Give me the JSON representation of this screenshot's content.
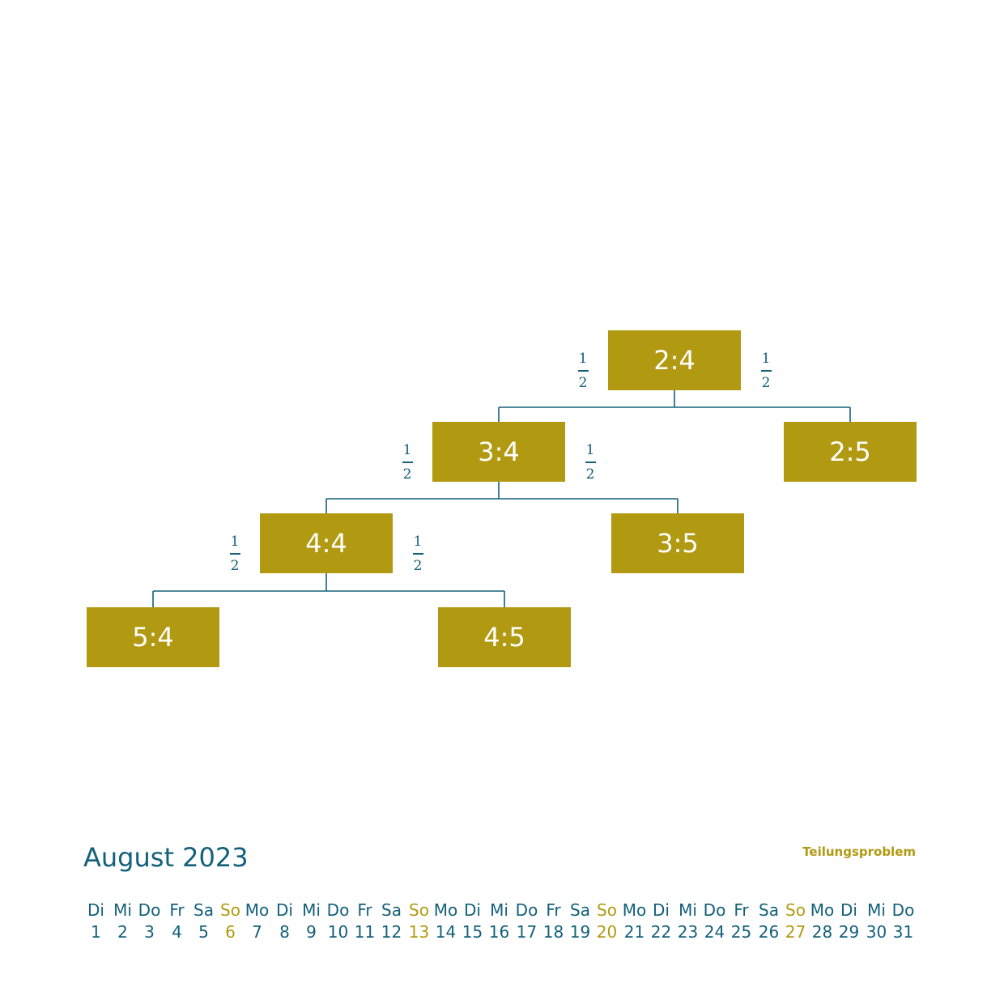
{
  "colors": {
    "accent": "#b19a11",
    "primary": "#13607a",
    "background": "#ffffff"
  },
  "tree": {
    "nodes": [
      {
        "id": "n24",
        "label": "2:4"
      },
      {
        "id": "n34",
        "label": "3:4"
      },
      {
        "id": "n25",
        "label": "2:5"
      },
      {
        "id": "n44",
        "label": "4:4"
      },
      {
        "id": "n35",
        "label": "3:5"
      },
      {
        "id": "n54",
        "label": "5:4"
      },
      {
        "id": "n45",
        "label": "4:5"
      }
    ],
    "edges": [
      {
        "from": "n24",
        "to": "n34"
      },
      {
        "from": "n24",
        "to": "n25"
      },
      {
        "from": "n34",
        "to": "n44"
      },
      {
        "from": "n34",
        "to": "n35"
      },
      {
        "from": "n44",
        "to": "n54"
      },
      {
        "from": "n44",
        "to": "n45"
      }
    ],
    "probabilities": [
      {
        "node": "n24",
        "side": "left",
        "numerator": "1",
        "denominator": "2"
      },
      {
        "node": "n24",
        "side": "right",
        "numerator": "1",
        "denominator": "2"
      },
      {
        "node": "n34",
        "side": "left",
        "numerator": "1",
        "denominator": "2"
      },
      {
        "node": "n34",
        "side": "right",
        "numerator": "1",
        "denominator": "2"
      },
      {
        "node": "n44",
        "side": "left",
        "numerator": "1",
        "denominator": "2"
      },
      {
        "node": "n44",
        "side": "right",
        "numerator": "1",
        "denominator": "2"
      }
    ]
  },
  "calendar": {
    "month_title": "August 2023",
    "topic": "Teilungsproblem",
    "days": [
      {
        "weekday": "Di",
        "date": "1",
        "sunday": false
      },
      {
        "weekday": "Mi",
        "date": "2",
        "sunday": false
      },
      {
        "weekday": "Do",
        "date": "3",
        "sunday": false
      },
      {
        "weekday": "Fr",
        "date": "4",
        "sunday": false
      },
      {
        "weekday": "Sa",
        "date": "5",
        "sunday": false
      },
      {
        "weekday": "So",
        "date": "6",
        "sunday": true
      },
      {
        "weekday": "Mo",
        "date": "7",
        "sunday": false
      },
      {
        "weekday": "Di",
        "date": "8",
        "sunday": false
      },
      {
        "weekday": "Mi",
        "date": "9",
        "sunday": false
      },
      {
        "weekday": "Do",
        "date": "10",
        "sunday": false
      },
      {
        "weekday": "Fr",
        "date": "11",
        "sunday": false
      },
      {
        "weekday": "Sa",
        "date": "12",
        "sunday": false
      },
      {
        "weekday": "So",
        "date": "13",
        "sunday": true
      },
      {
        "weekday": "Mo",
        "date": "14",
        "sunday": false
      },
      {
        "weekday": "Di",
        "date": "15",
        "sunday": false
      },
      {
        "weekday": "Mi",
        "date": "16",
        "sunday": false
      },
      {
        "weekday": "Do",
        "date": "17",
        "sunday": false
      },
      {
        "weekday": "Fr",
        "date": "18",
        "sunday": false
      },
      {
        "weekday": "Sa",
        "date": "19",
        "sunday": false
      },
      {
        "weekday": "So",
        "date": "20",
        "sunday": true
      },
      {
        "weekday": "Mo",
        "date": "21",
        "sunday": false
      },
      {
        "weekday": "Di",
        "date": "22",
        "sunday": false
      },
      {
        "weekday": "Mi",
        "date": "23",
        "sunday": false
      },
      {
        "weekday": "Do",
        "date": "24",
        "sunday": false
      },
      {
        "weekday": "Fr",
        "date": "25",
        "sunday": false
      },
      {
        "weekday": "Sa",
        "date": "26",
        "sunday": false
      },
      {
        "weekday": "So",
        "date": "27",
        "sunday": true
      },
      {
        "weekday": "Mo",
        "date": "28",
        "sunday": false
      },
      {
        "weekday": "Di",
        "date": "29",
        "sunday": false
      },
      {
        "weekday": "Mi",
        "date": "30",
        "sunday": false
      },
      {
        "weekday": "Do",
        "date": "31",
        "sunday": false
      }
    ]
  }
}
